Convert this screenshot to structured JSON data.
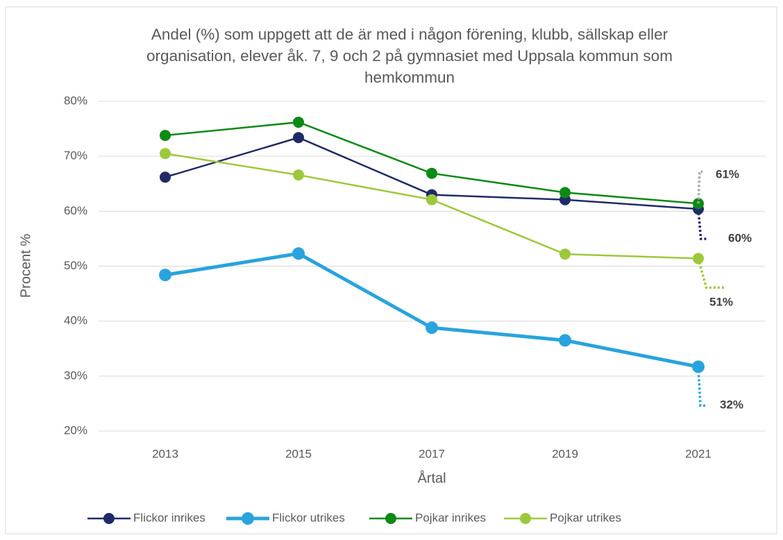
{
  "chart_data": {
    "type": "line",
    "title": "Andel (%) som uppgett att de är med i någon förening, klubb, sällskap eller organisation, elever åk. 7, 9 och 2 på gymnasiet med Uppsala kommun som hemkommun",
    "x_label": "Årtal",
    "y_label": "Procent %",
    "categories": [
      "2013",
      "2015",
      "2017",
      "2019",
      "2021"
    ],
    "ylim": [
      20,
      80
    ],
    "yticks": [
      {
        "value": 20,
        "label": "20%"
      },
      {
        "value": 30,
        "label": "30%"
      },
      {
        "value": 40,
        "label": "40%"
      },
      {
        "value": 50,
        "label": "50%"
      },
      {
        "value": 60,
        "label": "60%"
      },
      {
        "value": 70,
        "label": "70%"
      },
      {
        "value": 80,
        "label": "80%"
      }
    ],
    "grid": true,
    "legend": "bottom",
    "series": [
      {
        "name": "Flickor inrikes",
        "color": "#1f2a66",
        "values": [
          66.2,
          73.4,
          63.0,
          62.1,
          60.4
        ],
        "value_labels": [
          null,
          null,
          null,
          null,
          "60%"
        ]
      },
      {
        "name": "Flickor utrikes",
        "color": "#29a3dd",
        "values": [
          48.4,
          52.3,
          38.8,
          36.5,
          31.7
        ],
        "value_labels": [
          null,
          null,
          null,
          null,
          "32%"
        ]
      },
      {
        "name": "Pojkar inrikes",
        "color": "#0b8a15",
        "values": [
          73.8,
          76.2,
          66.9,
          63.4,
          61.4
        ],
        "value_labels": [
          null,
          null,
          null,
          null,
          "61%"
        ]
      },
      {
        "name": "Pojkar utrikes",
        "color": "#9dc83c",
        "values": [
          70.5,
          66.6,
          62.1,
          52.2,
          51.4
        ],
        "value_labels": [
          null,
          null,
          null,
          null,
          "51%"
        ]
      }
    ]
  }
}
